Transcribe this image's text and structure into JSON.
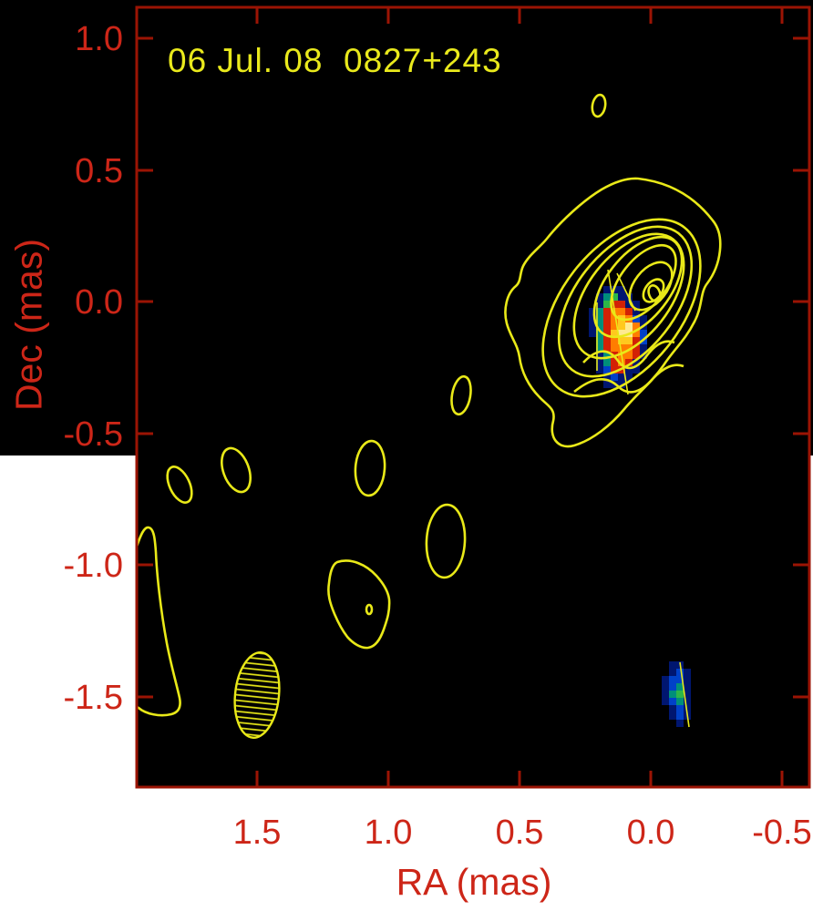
{
  "figure": {
    "header_annotation": "06 Jul. 08  0827+243",
    "epoch": "06 Jul. 08",
    "source_name": "0827+243"
  },
  "chart_data": {
    "type": "heatmap",
    "subtype": "VLBI contour map with polarization color overlay",
    "title": "06 Jul. 08  0827+243",
    "xlabel": "RA (mas)",
    "ylabel": "Dec (mas)",
    "x_tick_labels": [
      "1.5",
      "1.0",
      "0.5",
      "0.0",
      "-0.5"
    ],
    "y_tick_labels": [
      "1.0",
      "0.5",
      "0.0",
      "-0.5",
      "-1.0",
      "-1.5"
    ],
    "x_ticks": [
      1.5,
      1.0,
      0.5,
      0.0,
      -0.5
    ],
    "y_ticks": [
      1.0,
      0.5,
      0.0,
      -0.5,
      -1.0,
      -1.5
    ],
    "xlim": [
      2.0,
      -0.56
    ],
    "ylim": [
      -1.97,
      1.12
    ],
    "x_axis_inverted": true,
    "grid": false,
    "legend": false,
    "features": {
      "core": {
        "ra_mas": 0.0,
        "dec_mas": 0.0,
        "note": "peak of 9 nested yellow contour levels, elongated at position angle ~ -52 deg"
      },
      "polarized_jet_knot": {
        "ra_mas": 0.13,
        "dec_mas": -0.13,
        "note": "pixelated color patch: navy/blue rim, teal-green edge, red ring, orange, yellow-white peak, crossed by thin EVPA vectors"
      },
      "secondary_polarized_knot": {
        "ra_mas": -0.1,
        "dec_mas": -1.48,
        "note": "small blue patch with teal-green peak and one EVPA vector"
      },
      "restoring_beam": {
        "ra_mas": 1.5,
        "dec_mas": -1.5,
        "note": "hatched ellipse, nearly vertical"
      },
      "low_level_contour_blobs_ra_dec_mas": [
        [
          1.8,
          -0.7
        ],
        [
          1.58,
          -0.64
        ],
        [
          1.08,
          -0.63
        ],
        [
          0.78,
          -0.91
        ],
        [
          0.72,
          -0.35
        ],
        [
          0.2,
          0.74
        ],
        [
          1.11,
          -1.15
        ],
        [
          1.91,
          -1.24
        ]
      ]
    },
    "colors": {
      "plot_background": "#000000",
      "upper_margin": "#000000",
      "lower_margin": "#ffffff",
      "contours": "#e9e918",
      "axis_frame": "#9b1404",
      "axis_labels": "#cd2618",
      "annotation_text": "#e9e91c"
    },
    "pixel_patches": [
      {
        "name": "polarization-patch-jet",
        "cell": 8,
        "palette": {
          "n": "#001670",
          "b": "#0041c8",
          "t": "#008f7a",
          "g": "#2cb648",
          "r": "#d32105",
          "o": "#ff7d00",
          "y": "#ffc91e",
          "w": "#ffea90"
        },
        "rows": [
          "..nnn...",
          ".ntgnn..",
          ".ngrrnn.",
          "ntroorn.",
          "ntroyobn",
          "ntroywon",
          "ntrywwob",
          ".troyyrb",
          ".trooorn",
          ".ntroorn",
          ".ntrorn.",
          ".nbrrnn.",
          "..nbnn..",
          "..nnn..."
        ]
      },
      {
        "name": "polarization-patch-sw",
        "cell": 8,
        "palette": {
          "n": "#001670",
          "b": "#0041c8",
          "t": "#008f7a",
          "g": "#2cb648"
        },
        "rows": [
          ".nn.",
          ".nbn",
          "nbbn",
          "nbtn",
          "ntgn",
          "nbtn",
          ".nbn",
          ".nbn",
          "..n."
        ]
      }
    ]
  }
}
